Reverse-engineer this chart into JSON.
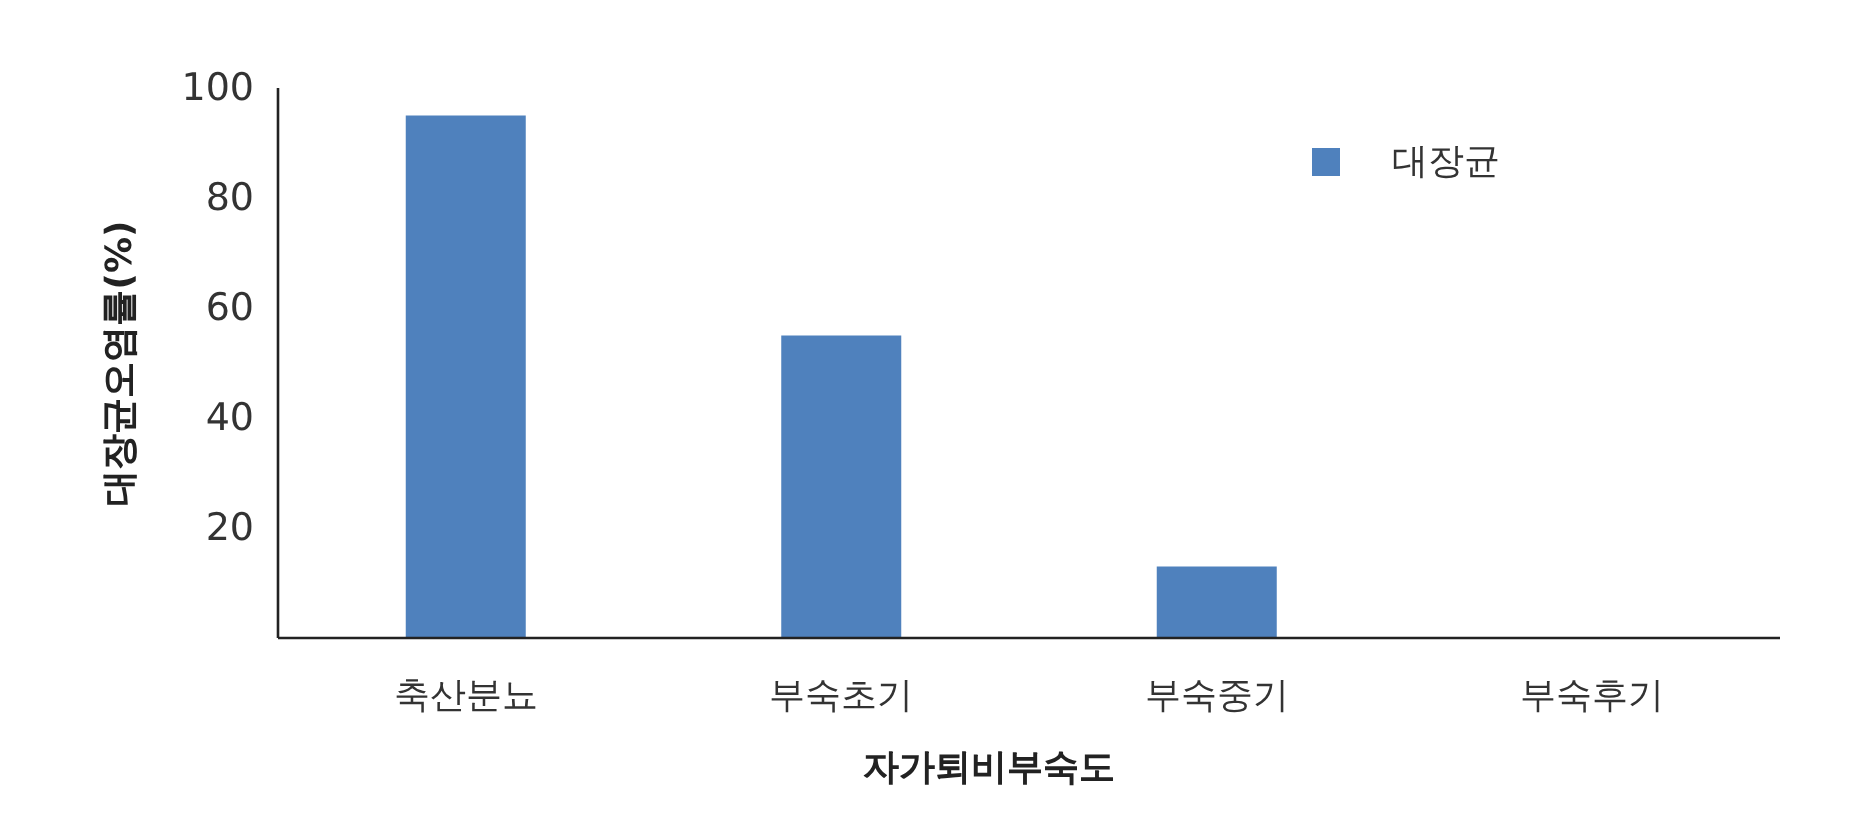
{
  "chart_data": {
    "type": "bar",
    "xlabel": "자가퇴비부숙도",
    "ylabel": "대장균오염률(%)",
    "categories": [
      "축산분뇨",
      "부숙초기",
      "부숙중기",
      "부숙후기"
    ],
    "series": [
      {
        "name": "대장균",
        "color": "#4f81bd",
        "values": [
          95,
          55,
          13,
          0
        ]
      }
    ],
    "ylim": [
      0,
      100
    ],
    "yticks": [
      20,
      40,
      60,
      80,
      100
    ],
    "legend": "top right"
  }
}
